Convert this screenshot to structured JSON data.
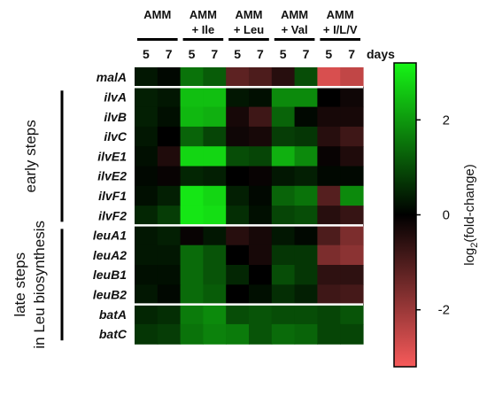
{
  "chart_data": {
    "type": "heatmap",
    "conditions": [
      {
        "line1": "AMM",
        "line2": ""
      },
      {
        "line1": "AMM",
        "line2": "+ Ile"
      },
      {
        "line1": "AMM",
        "line2": "+ Leu"
      },
      {
        "line1": "AMM",
        "line2": "+ Val"
      },
      {
        "line1": "AMM",
        "line2": "+ I/L/V"
      }
    ],
    "days": [
      "5",
      "7"
    ],
    "days_label": "days",
    "genes": [
      "malA",
      "ilvA",
      "ilvB",
      "ilvC",
      "ilvE1",
      "ilvE2",
      "ilvF1",
      "ilvF2",
      "leuA1",
      "leuA2",
      "leuB1",
      "leuB2",
      "batA",
      "batC"
    ],
    "groups": [
      {
        "line1": "early steps",
        "line2": "",
        "rows": [
          1,
          7
        ]
      },
      {
        "line1": "late steps",
        "line2": "in Leu biosynthesis",
        "rows": [
          8,
          13
        ]
      }
    ],
    "values": [
      [
        0.3,
        0.1,
        1.5,
        1.2,
        -1.2,
        -1.0,
        -0.5,
        1.0,
        -2.8,
        -2.5
      ],
      [
        0.4,
        0.3,
        2.5,
        2.5,
        0.3,
        0.2,
        1.8,
        1.8,
        0.0,
        -0.2
      ],
      [
        0.4,
        0.2,
        2.4,
        2.3,
        -0.3,
        -0.8,
        1.3,
        0.1,
        -0.3,
        -0.3
      ],
      [
        0.3,
        0.0,
        1.3,
        0.9,
        -0.2,
        -0.3,
        0.8,
        0.7,
        -0.5,
        -0.8
      ],
      [
        0.2,
        -0.4,
        2.8,
        2.8,
        1.0,
        0.9,
        2.3,
        1.8,
        -0.1,
        -0.4
      ],
      [
        0.1,
        -0.1,
        0.5,
        0.4,
        0.0,
        -0.1,
        0.3,
        0.4,
        0.1,
        0.1
      ],
      [
        0.2,
        0.4,
        3.0,
        2.8,
        0.4,
        0.1,
        1.3,
        1.5,
        -1.1,
        1.8
      ],
      [
        0.5,
        0.8,
        3.0,
        2.9,
        0.6,
        0.2,
        0.9,
        1.0,
        -0.5,
        -0.7
      ],
      [
        0.3,
        0.4,
        -0.1,
        0.3,
        -0.5,
        -0.3,
        0.3,
        0.1,
        -1.0,
        -1.6
      ],
      [
        0.3,
        0.3,
        1.4,
        1.1,
        0.0,
        -0.3,
        0.7,
        0.7,
        -1.6,
        -1.8
      ],
      [
        0.2,
        0.2,
        1.4,
        1.1,
        0.5,
        0.0,
        1.0,
        0.7,
        -0.6,
        -0.6
      ],
      [
        0.3,
        0.1,
        1.4,
        1.2,
        0.0,
        0.2,
        0.6,
        0.4,
        -0.8,
        -0.9
      ],
      [
        0.5,
        0.6,
        1.6,
        1.8,
        1.0,
        1.1,
        1.0,
        1.0,
        0.9,
        1.1
      ],
      [
        0.7,
        0.8,
        1.5,
        1.7,
        1.6,
        1.1,
        1.4,
        1.3,
        0.9,
        0.9
      ]
    ],
    "colorbar": {
      "title": "log",
      "subscript": "2",
      "suffix": "(fold-change)",
      "range": [
        -3.2,
        3.2
      ],
      "ticks": [
        -2,
        0,
        2
      ],
      "tick_labels": [
        "-2",
        "0",
        "2"
      ],
      "colors": {
        "low": "#f75a5a",
        "mid": "#000000",
        "high": "#16f516"
      }
    }
  }
}
